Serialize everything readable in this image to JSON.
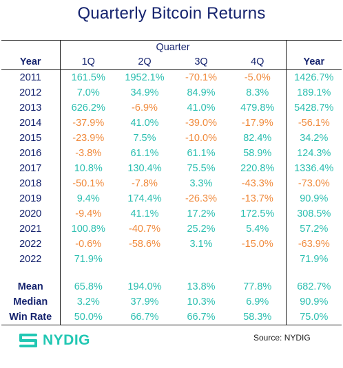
{
  "title": "Quarterly Bitcoin Returns",
  "colors": {
    "title": "#15236e",
    "positive": "#2bbfb0",
    "negative": "#f08a3c",
    "brand": "#22c7b3"
  },
  "header": {
    "quarter_group": "Quarter",
    "year_col": "Year",
    "quarters": [
      "1Q",
      "2Q",
      "3Q",
      "4Q"
    ],
    "total_col": "Year"
  },
  "rows": [
    {
      "year": "2011",
      "cells": [
        "161.5%",
        "1952.1%",
        "-70.1%",
        "-5.0%",
        "1426.7%"
      ]
    },
    {
      "year": "2012",
      "cells": [
        "7.0%",
        "34.9%",
        "84.9%",
        "8.3%",
        "189.1%"
      ]
    },
    {
      "year": "2013",
      "cells": [
        "626.2%",
        "-6.9%",
        "41.0%",
        "479.8%",
        "5428.7%"
      ]
    },
    {
      "year": "2014",
      "cells": [
        "-37.9%",
        "41.0%",
        "-39.0%",
        "-17.9%",
        "-56.1%"
      ]
    },
    {
      "year": "2015",
      "cells": [
        "-23.9%",
        "7.5%",
        "-10.0%",
        "82.4%",
        "34.2%"
      ]
    },
    {
      "year": "2016",
      "cells": [
        "-3.8%",
        "61.1%",
        "61.1%",
        "58.9%",
        "124.3%"
      ]
    },
    {
      "year": "2017",
      "cells": [
        "10.8%",
        "130.4%",
        "75.5%",
        "220.8%",
        "1336.4%"
      ]
    },
    {
      "year": "2018",
      "cells": [
        "-50.1%",
        "-7.8%",
        "3.3%",
        "-43.3%",
        "-73.0%"
      ]
    },
    {
      "year": "2019",
      "cells": [
        "9.4%",
        "174.4%",
        "-26.3%",
        "-13.7%",
        "90.9%"
      ]
    },
    {
      "year": "2020",
      "cells": [
        "-9.4%",
        "41.1%",
        "17.2%",
        "172.5%",
        "308.5%"
      ]
    },
    {
      "year": "2021",
      "cells": [
        "100.8%",
        "-40.7%",
        "25.2%",
        "5.4%",
        "57.2%"
      ]
    },
    {
      "year": "2022",
      "cells": [
        "-0.6%",
        "-58.6%",
        "3.1%",
        "-15.0%",
        "-63.9%"
      ]
    },
    {
      "year": "2022",
      "cells": [
        "71.9%",
        "",
        "",
        "",
        "71.9%"
      ]
    }
  ],
  "stats": [
    {
      "label": "Mean",
      "cells": [
        "65.8%",
        "194.0%",
        "13.8%",
        "77.8%",
        "682.7%"
      ]
    },
    {
      "label": "Median",
      "cells": [
        "3.2%",
        "37.9%",
        "10.3%",
        "6.9%",
        "90.9%"
      ]
    },
    {
      "label": "Win Rate",
      "cells": [
        "50.0%",
        "66.7%",
        "66.7%",
        "58.3%",
        "75.0%"
      ]
    }
  ],
  "footer": {
    "logo_text": "NYDIG",
    "source": "Source: NYDIG"
  },
  "chart_data": {
    "type": "table",
    "title": "Quarterly Bitcoin Returns",
    "columns": [
      "Year",
      "1Q",
      "2Q",
      "3Q",
      "4Q",
      "Year"
    ],
    "rows": [
      [
        "2011",
        161.5,
        1952.1,
        -70.1,
        -5.0,
        1426.7
      ],
      [
        "2012",
        7.0,
        34.9,
        84.9,
        8.3,
        189.1
      ],
      [
        "2013",
        626.2,
        -6.9,
        41.0,
        479.8,
        5428.7
      ],
      [
        "2014",
        -37.9,
        41.0,
        -39.0,
        -17.9,
        -56.1
      ],
      [
        "2015",
        -23.9,
        7.5,
        -10.0,
        82.4,
        34.2
      ],
      [
        "2016",
        -3.8,
        61.1,
        61.1,
        58.9,
        124.3
      ],
      [
        "2017",
        10.8,
        130.4,
        75.5,
        220.8,
        1336.4
      ],
      [
        "2018",
        -50.1,
        -7.8,
        3.3,
        -43.3,
        -73.0
      ],
      [
        "2019",
        9.4,
        174.4,
        -26.3,
        -13.7,
        90.9
      ],
      [
        "2020",
        -9.4,
        41.1,
        17.2,
        172.5,
        308.5
      ],
      [
        "2021",
        100.8,
        -40.7,
        25.2,
        5.4,
        57.2
      ],
      [
        "2022",
        -0.6,
        -58.6,
        3.1,
        -15.0,
        -63.9
      ],
      [
        "2022",
        71.9,
        null,
        null,
        null,
        71.9
      ]
    ],
    "summary": [
      [
        "Mean",
        65.8,
        194.0,
        13.8,
        77.8,
        682.7
      ],
      [
        "Median",
        3.2,
        37.9,
        10.3,
        6.9,
        90.9
      ],
      [
        "Win Rate",
        50.0,
        66.7,
        66.7,
        58.3,
        75.0
      ]
    ]
  }
}
